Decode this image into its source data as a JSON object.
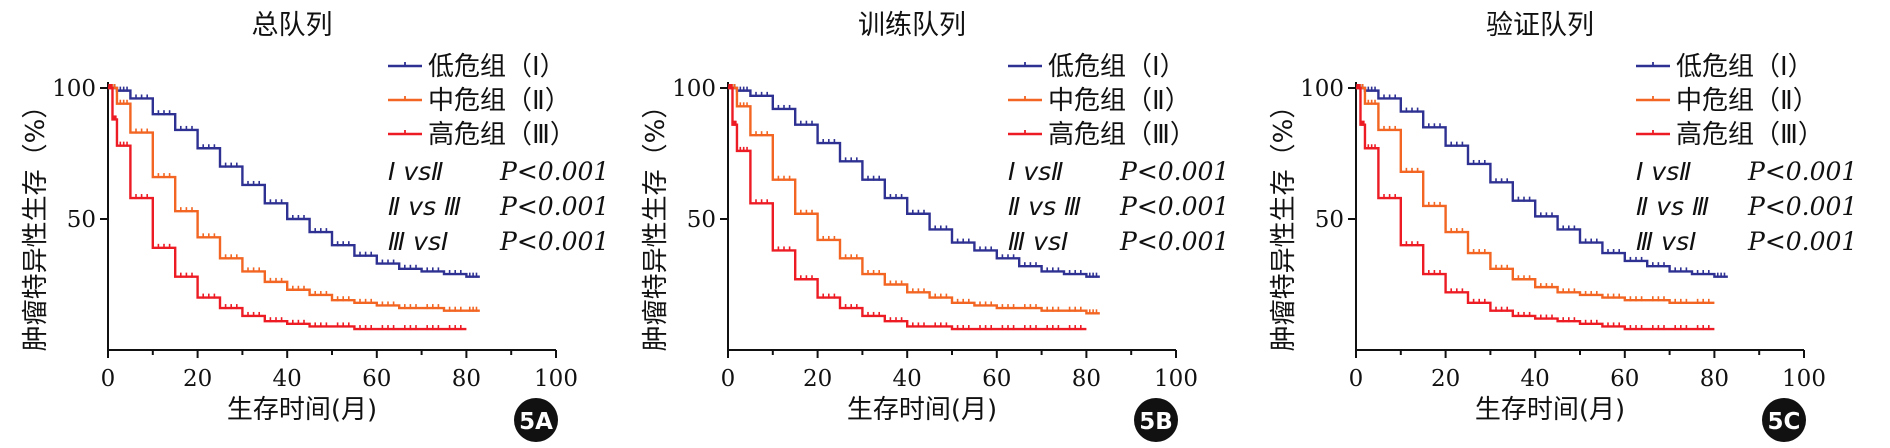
{
  "chart_data": [
    {
      "panel_label": "5A",
      "type": "line",
      "title": "总队列",
      "xlabel": "生存时间(月)",
      "ylabel": "肿瘤特异性生存（%）",
      "xlim": [
        0,
        100
      ],
      "ylim": [
        0,
        100
      ],
      "x_ticks": [
        0,
        20,
        40,
        60,
        80,
        100
      ],
      "y_ticks": [
        50,
        100
      ],
      "stats": [
        {
          "comparison": "Ⅰ vsⅡ",
          "p": "P<0.001"
        },
        {
          "comparison": "Ⅱ vs Ⅲ",
          "p": "P<0.001"
        },
        {
          "comparison": "Ⅲ  vsⅠ",
          "p": "P<0.001"
        }
      ],
      "series": [
        {
          "name": "低危组（Ⅰ）",
          "color": "#2e3192",
          "x": [
            0,
            2,
            5,
            10,
            15,
            20,
            25,
            30,
            35,
            40,
            45,
            50,
            55,
            60,
            65,
            70,
            75,
            80,
            83
          ],
          "y": [
            100,
            99,
            96,
            90,
            84,
            77,
            70,
            63,
            56,
            50,
            45,
            40,
            36,
            33,
            31,
            30,
            29,
            28,
            28
          ]
        },
        {
          "name": "中危组（Ⅱ）",
          "color": "#f26522",
          "x": [
            0,
            2,
            5,
            10,
            15,
            20,
            25,
            30,
            35,
            40,
            45,
            50,
            55,
            60,
            65,
            70,
            75,
            80,
            83
          ],
          "y": [
            100,
            94,
            83,
            66,
            53,
            43,
            35,
            30,
            26,
            23,
            21,
            19,
            18,
            17,
            16,
            16,
            15,
            15,
            15
          ]
        },
        {
          "name": "高危组（Ⅲ）",
          "color": "#ed1c24",
          "x": [
            0,
            1,
            2,
            5,
            10,
            15,
            20,
            25,
            30,
            35,
            40,
            45,
            50,
            55,
            60,
            65,
            70,
            75,
            80
          ],
          "y": [
            100,
            88,
            78,
            58,
            39,
            28,
            20,
            16,
            13,
            11,
            10,
            9,
            9,
            8,
            8,
            8,
            8,
            8,
            8
          ]
        }
      ]
    },
    {
      "panel_label": "5B",
      "type": "line",
      "title": "训练队列",
      "xlabel": "生存时间(月)",
      "ylabel": "肿瘤特异性生存（%）",
      "xlim": [
        0,
        100
      ],
      "ylim": [
        0,
        100
      ],
      "x_ticks": [
        0,
        20,
        40,
        60,
        80,
        100
      ],
      "y_ticks": [
        50,
        100
      ],
      "stats": [
        {
          "comparison": "Ⅰ vsⅡ",
          "p": "P<0.001"
        },
        {
          "comparison": "Ⅱ vs Ⅲ",
          "p": "P<0.001"
        },
        {
          "comparison": "Ⅲ  vsⅠ",
          "p": "P<0.001"
        }
      ],
      "series": [
        {
          "name": "低危组（Ⅰ）",
          "color": "#2e3192",
          "x": [
            0,
            2,
            5,
            10,
            15,
            20,
            25,
            30,
            35,
            40,
            45,
            50,
            55,
            60,
            65,
            70,
            75,
            80,
            83
          ],
          "y": [
            100,
            99,
            97,
            92,
            86,
            79,
            72,
            65,
            58,
            52,
            46,
            41,
            38,
            35,
            32,
            30,
            29,
            28,
            28
          ]
        },
        {
          "name": "中危组（Ⅱ）",
          "color": "#f26522",
          "x": [
            0,
            2,
            5,
            10,
            15,
            20,
            25,
            30,
            35,
            40,
            45,
            50,
            55,
            60,
            65,
            70,
            75,
            80,
            83
          ],
          "y": [
            100,
            93,
            82,
            65,
            52,
            42,
            35,
            29,
            25,
            22,
            20,
            18,
            17,
            16,
            16,
            15,
            15,
            14,
            14
          ]
        },
        {
          "name": "高危组（Ⅲ）",
          "color": "#ed1c24",
          "x": [
            0,
            1,
            2,
            5,
            10,
            15,
            20,
            25,
            30,
            35,
            40,
            45,
            50,
            55,
            60,
            65,
            70,
            75,
            80
          ],
          "y": [
            100,
            86,
            76,
            56,
            38,
            27,
            20,
            16,
            13,
            11,
            9,
            9,
            8,
            8,
            8,
            8,
            8,
            8,
            8
          ]
        }
      ]
    },
    {
      "panel_label": "5C",
      "type": "line",
      "title": "验证队列",
      "xlabel": "生存时间(月)",
      "ylabel": "肿瘤特异性生存（%）",
      "xlim": [
        0,
        100
      ],
      "ylim": [
        0,
        100
      ],
      "x_ticks": [
        0,
        20,
        40,
        60,
        80,
        100
      ],
      "y_ticks": [
        50,
        100
      ],
      "stats": [
        {
          "comparison": "Ⅰ vsⅡ",
          "p": "P<0.001"
        },
        {
          "comparison": "Ⅱ vs Ⅲ",
          "p": "P<0.001"
        },
        {
          "comparison": "Ⅲ  vsⅠ",
          "p": "P<0.001"
        }
      ],
      "series": [
        {
          "name": "低危组（Ⅰ）",
          "color": "#2e3192",
          "x": [
            0,
            2,
            5,
            10,
            15,
            20,
            25,
            30,
            35,
            40,
            45,
            50,
            55,
            60,
            65,
            70,
            75,
            80,
            83
          ],
          "y": [
            100,
            99,
            96,
            91,
            85,
            78,
            71,
            64,
            57,
            51,
            46,
            41,
            37,
            34,
            32,
            30,
            29,
            28,
            28
          ]
        },
        {
          "name": "中危组（Ⅱ）",
          "color": "#f26522",
          "x": [
            0,
            2,
            5,
            10,
            15,
            20,
            25,
            30,
            35,
            40,
            45,
            50,
            55,
            60,
            65,
            70,
            75,
            80
          ],
          "y": [
            100,
            94,
            84,
            68,
            55,
            45,
            37,
            31,
            27,
            24,
            22,
            21,
            20,
            19,
            19,
            18,
            18,
            18
          ]
        },
        {
          "name": "高危组（Ⅲ）",
          "color": "#ed1c24",
          "x": [
            0,
            1,
            2,
            5,
            10,
            15,
            20,
            25,
            30,
            35,
            40,
            45,
            50,
            55,
            60,
            65,
            70,
            75,
            80
          ],
          "y": [
            100,
            86,
            77,
            58,
            40,
            29,
            22,
            18,
            15,
            13,
            12,
            11,
            10,
            9,
            8,
            8,
            8,
            8,
            8
          ]
        }
      ]
    }
  ]
}
